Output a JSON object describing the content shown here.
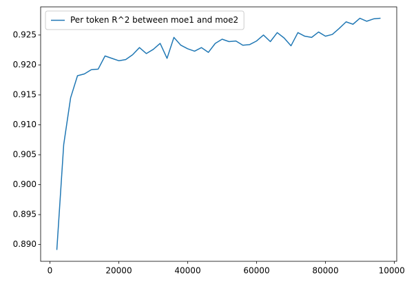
{
  "chart_data": {
    "type": "line",
    "x": [
      2000,
      4000,
      6000,
      8000,
      10000,
      12000,
      14000,
      16000,
      18000,
      20000,
      22000,
      24000,
      26000,
      28000,
      30000,
      32000,
      34000,
      36000,
      38000,
      40000,
      42000,
      44000,
      46000,
      48000,
      50000,
      52000,
      54000,
      56000,
      58000,
      60000,
      62000,
      64000,
      66000,
      68000,
      70000,
      72000,
      74000,
      76000,
      78000,
      80000,
      82000,
      84000,
      86000,
      88000,
      90000,
      92000,
      94000,
      96000
    ],
    "series": [
      {
        "name": "Per token R^2 between moe1 and moe2",
        "color": "#1f77b4",
        "values": [
          0.8891,
          0.9067,
          0.9145,
          0.9182,
          0.9185,
          0.9192,
          0.9193,
          0.9215,
          0.9211,
          0.9207,
          0.9209,
          0.9217,
          0.9229,
          0.9219,
          0.9226,
          0.9236,
          0.9211,
          0.9246,
          0.9233,
          0.9227,
          0.9223,
          0.9229,
          0.9221,
          0.9236,
          0.9243,
          0.9239,
          0.924,
          0.9233,
          0.9234,
          0.924,
          0.925,
          0.9239,
          0.9254,
          0.9245,
          0.9232,
          0.9254,
          0.9248,
          0.9246,
          0.9255,
          0.9248,
          0.9251,
          0.9261,
          0.9272,
          0.9268,
          0.9278,
          0.9273,
          0.9277,
          0.9278
        ]
      }
    ],
    "xlim": [
      -2700,
      100700
    ],
    "xticks": [
      0,
      20000,
      40000,
      60000,
      80000,
      100000
    ],
    "ylim": [
      0.8872,
      0.9297
    ],
    "yticks": [
      {
        "value": 0.89,
        "label": "0.890"
      },
      0.895,
      {
        "value": 0.9,
        "label": "0.900"
      },
      0.905,
      {
        "value": 0.91,
        "label": "0.910"
      },
      0.915,
      {
        "value": 0.92,
        "label": "0.920"
      },
      0.925
    ],
    "legend": "upper left"
  }
}
